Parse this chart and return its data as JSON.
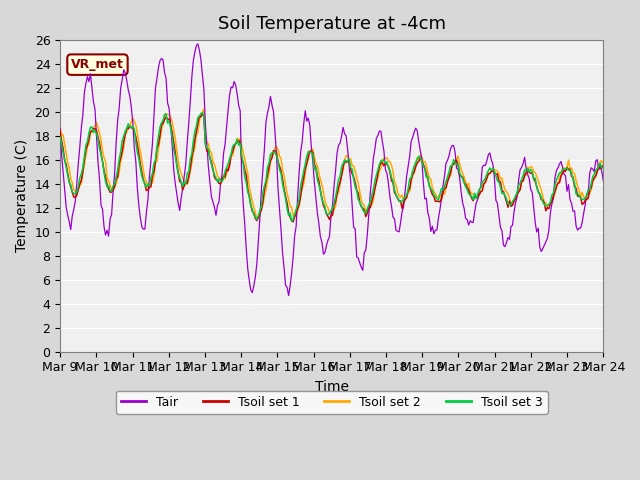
{
  "title": "Soil Temperature at -4cm",
  "xlabel": "Time",
  "ylabel": "Temperature (C)",
  "ylim": [
    0,
    26
  ],
  "yticks": [
    0,
    2,
    4,
    6,
    8,
    10,
    12,
    14,
    16,
    18,
    20,
    22,
    24,
    26
  ],
  "xtick_labels": [
    "Mar 9",
    "Mar 10",
    "Mar 11",
    "Mar 12",
    "Mar 13",
    "Mar 14",
    "Mar 15",
    "Mar 16",
    "Mar 17",
    "Mar 18",
    "Mar 19",
    "Mar 20",
    "Mar 21",
    "Mar 22",
    "Mar 23",
    "Mar 24"
  ],
  "colors": {
    "Tair": "#9900cc",
    "Tsoil1": "#cc0000",
    "Tsoil2": "#ffaa00",
    "Tsoil3": "#00cc44"
  },
  "legend_labels": [
    "Tair",
    "Tsoil set 1",
    "Tsoil set 2",
    "Tsoil set 3"
  ],
  "annotation_text": "VR_met",
  "bg_color": "#d8d8d8",
  "plot_bg_color": "#f0f0f0",
  "title_fontsize": 13,
  "axis_fontsize": 10,
  "tick_fontsize": 9
}
